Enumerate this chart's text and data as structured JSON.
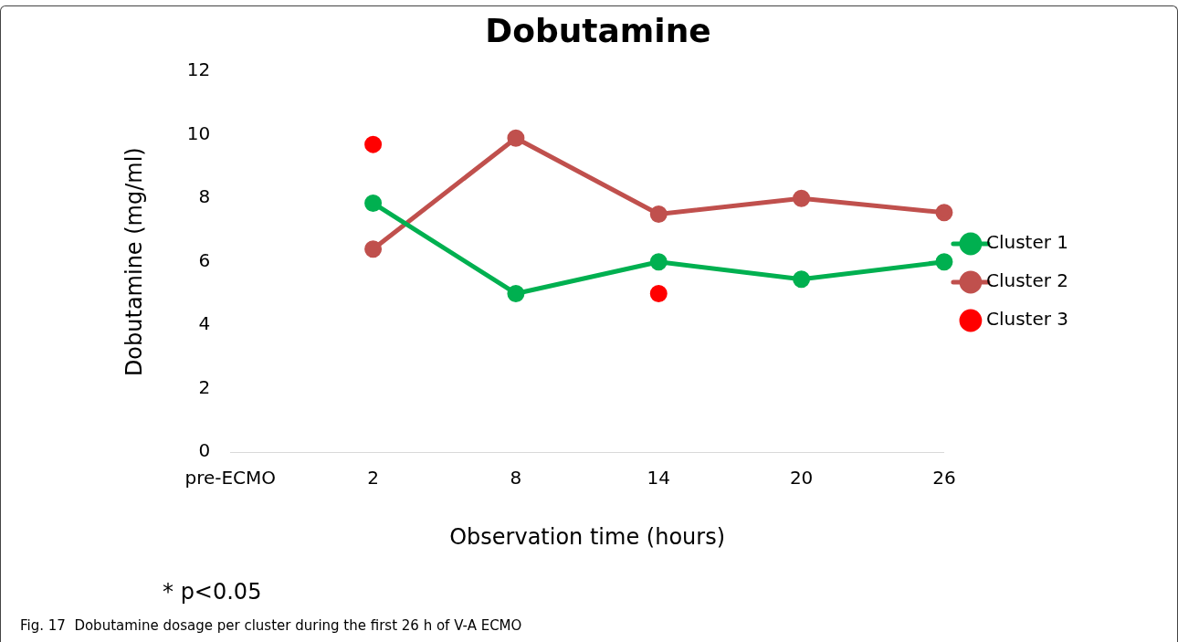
{
  "chart_data": {
    "type": "line",
    "title": "Dobutamine",
    "xlabel": "Observation time (hours)",
    "ylabel": "Dobutamine (mg/ml)",
    "categories": [
      "pre-ECMO",
      "2",
      "8",
      "14",
      "20",
      "26"
    ],
    "series": [
      {
        "name": "Cluster 1",
        "color": "#00b050",
        "values": [
          null,
          7.85,
          5.0,
          6.0,
          5.45,
          6.0
        ]
      },
      {
        "name": "Cluster 2",
        "color": "#c0504d",
        "values": [
          null,
          6.4,
          9.9,
          7.5,
          8.0,
          7.55
        ]
      },
      {
        "name": "Cluster 3",
        "type": "scatter",
        "color": "#ff0000",
        "values": [
          null,
          9.7,
          null,
          5.0,
          null,
          null
        ]
      }
    ],
    "ylim": [
      0,
      12
    ],
    "yticks": [
      0,
      2,
      4,
      6,
      8,
      10,
      12
    ],
    "grid": false,
    "legend": "right",
    "marker": "circle",
    "line_style": "solid",
    "annotations": [
      "* p<0.05",
      "Fig. 17  Dobutamine dosage per cluster during the first 26 h of V-A ECMO"
    ]
  }
}
